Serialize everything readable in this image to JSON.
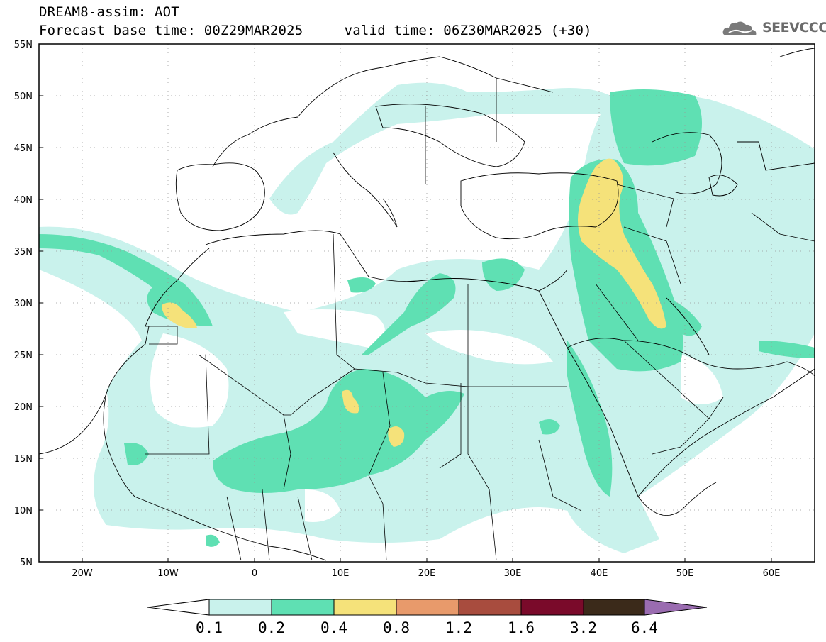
{
  "title": {
    "line1": "DREAM8-assim: AOT",
    "line2": "Forecast base time: 00Z29MAR2025     valid time: 06Z30MAR2025 (+30)"
  },
  "logo": {
    "text": "SEEVCCC",
    "icon": "cloud-icon"
  },
  "map": {
    "lat_labels": [
      "55N",
      "50N",
      "45N",
      "40N",
      "35N",
      "30N",
      "25N",
      "20N",
      "15N",
      "10N",
      "5N"
    ],
    "lon_labels": [
      "20W",
      "10W",
      "0",
      "10E",
      "20E",
      "30E",
      "40E",
      "50E",
      "60E"
    ],
    "lat_range": [
      5,
      55
    ],
    "lon_range": [
      -25,
      65
    ],
    "grid": "dotted"
  },
  "colorbar": {
    "labels": [
      "0.1",
      "0.2",
      "0.4",
      "0.8",
      "1.2",
      "1.6",
      "3.2",
      "6.4"
    ],
    "colors": [
      "#ffffff",
      "#c9f2ec",
      "#5fe0b3",
      "#f5e27a",
      "#e89a6b",
      "#a84c3e",
      "#7a0a2a",
      "#3b2a1a",
      "#9a6cb0"
    ]
  }
}
